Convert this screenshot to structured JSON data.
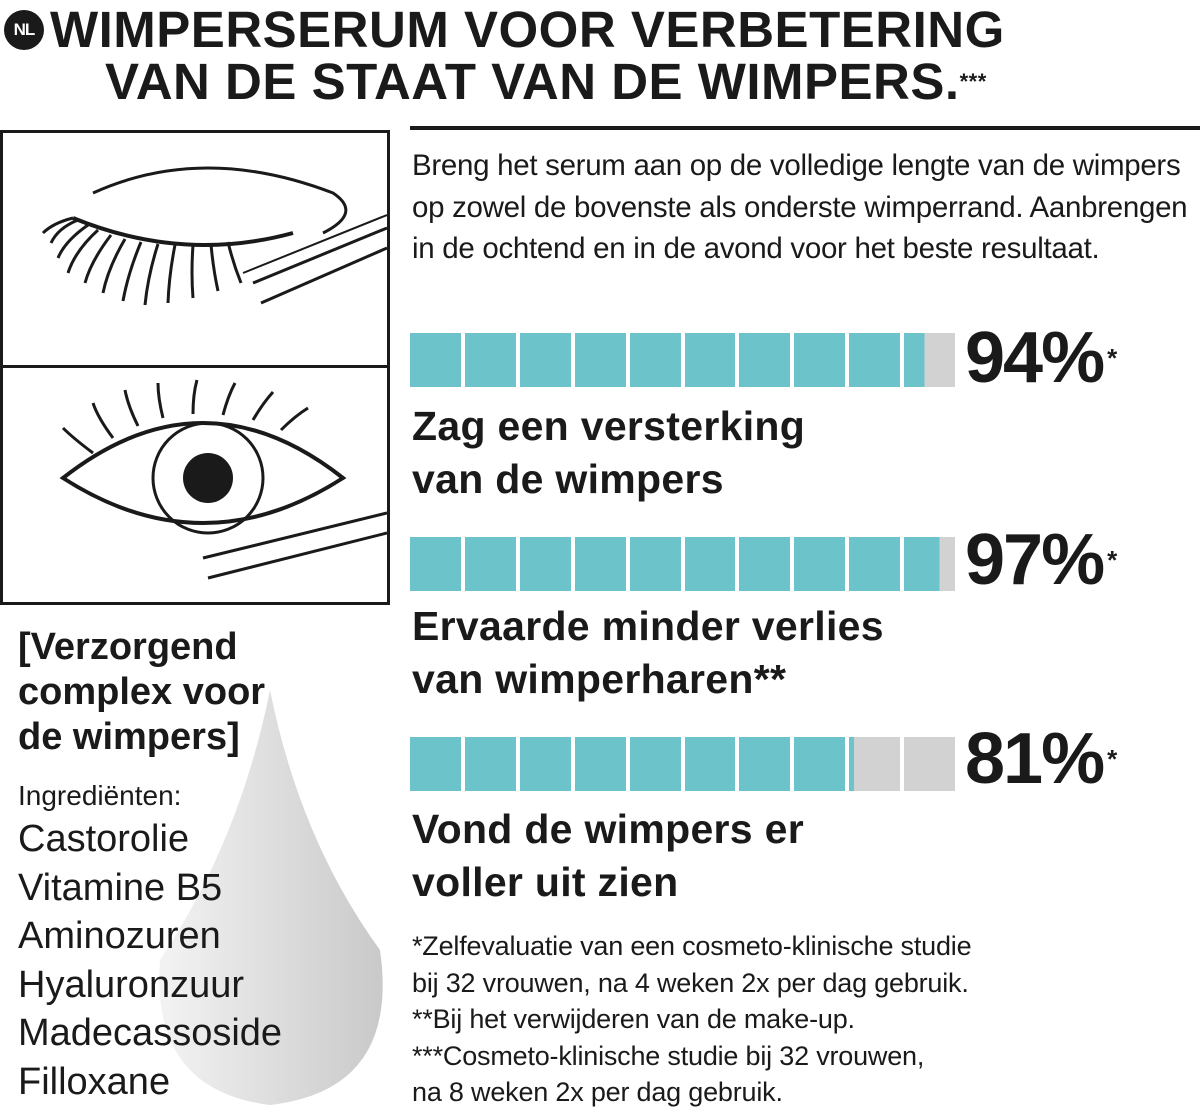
{
  "badge": "NL",
  "title": {
    "line1": "WIMPERSERUM VOOR VERBETERING",
    "line2": "VAN DE STAAT VAN DE WIMPERS.",
    "mark": "***"
  },
  "intro": "Breng het serum aan op de volledige lengte van de wimpers op zowel de bovenste als onderste wimperrand. Aanbrengen in de ochtend en in de avond voor het beste resultaat.",
  "colors": {
    "fill": "#6cc3c9",
    "empty": "#d2d2d2",
    "text": "#1a1a1a"
  },
  "stats": [
    {
      "percent": 94,
      "display": "94%",
      "mark": "*",
      "label1": "Zag een versterking",
      "label2": "van de wimpers"
    },
    {
      "percent": 97,
      "display": "97%",
      "mark": "*",
      "label1": "Ervaarde minder verlies",
      "label2": "van wimperharen**"
    },
    {
      "percent": 81,
      "display": "81%",
      "mark": "*",
      "label1": "Vond de wimpers er",
      "label2": "voller uit zien"
    }
  ],
  "complex": {
    "line1": "[Verzorgend",
    "line2": "complex voor",
    "line3": "de wimpers]"
  },
  "ingredients_heading": "Ingrediënten:",
  "ingredients": [
    "Castorolie",
    "Vitamine B5",
    "Aminozuren",
    "Hyaluronzuur",
    "Madecassoside",
    "Filloxane"
  ],
  "footnotes": [
    "*Zelfevaluatie van een cosmeto-klinische studie",
    "bij 32 vrouwen, na 4 weken 2x per dag gebruik.",
    "**Bij het verwijderen van de make-up.",
    "***Cosmeto-klinische studie bij 32 vrouwen,",
    "na 8 weken 2x per dag gebruik."
  ]
}
